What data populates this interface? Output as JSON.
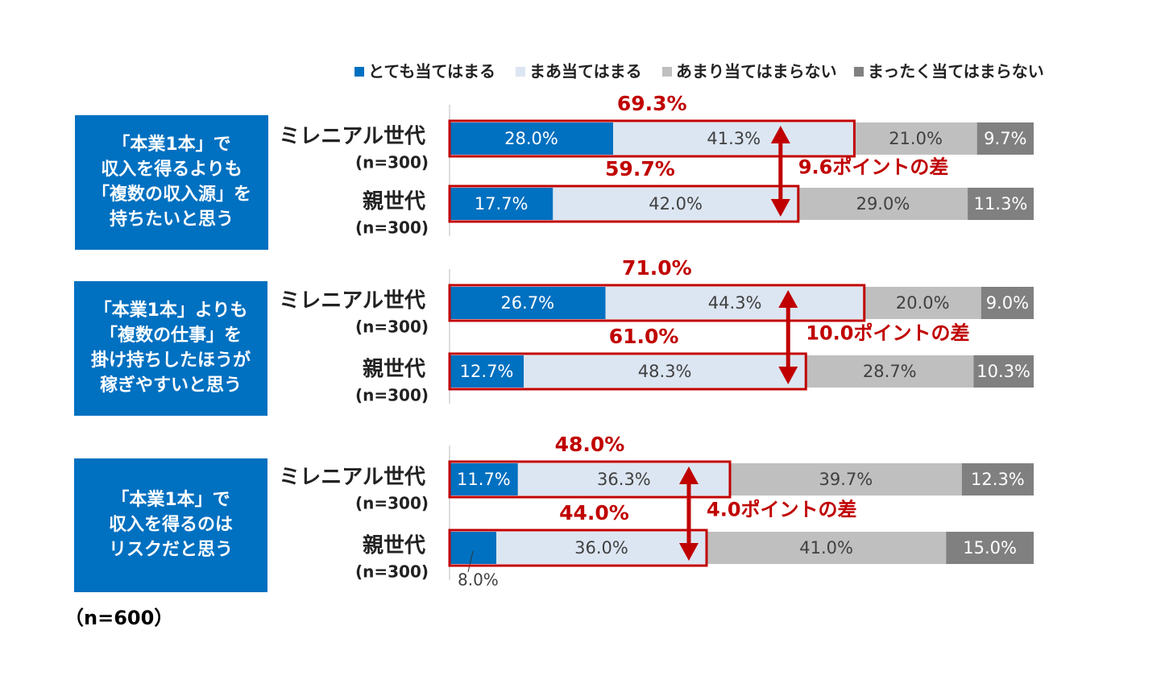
{
  "chart_data": {
    "type": "bar",
    "orientation": "horizontal",
    "stacked": true,
    "xlim": [
      0,
      100
    ],
    "legend": "top",
    "categories": [
      "ミレニアル世代",
      "親世代",
      "ミレニアル世代",
      "親世代",
      "ミレニアル世代",
      "親世代"
    ],
    "category_notes": [
      "(n=300)",
      "(n=300)",
      "(n=300)",
      "(n=300)",
      "(n=300)",
      "(n=300)"
    ],
    "series": [
      {
        "name": "とても当てはまる",
        "color": "#0070c0",
        "values": [
          28.0,
          17.7,
          26.7,
          12.7,
          11.7,
          8.0
        ],
        "value_labels": [
          "28.0%",
          "17.7%",
          "26.7%",
          "12.7%",
          "11.7%",
          "8.0%"
        ]
      },
      {
        "name": "まあ当てはまる",
        "color": "#dce6f2",
        "values": [
          41.3,
          42.0,
          44.3,
          48.3,
          36.3,
          36.0
        ],
        "value_labels": [
          "41.3%",
          "42.0%",
          "44.3%",
          "48.3%",
          "36.3%",
          "36.0%"
        ]
      },
      {
        "name": "あまり当てはまらない",
        "color": "#bfbfbf",
        "values": [
          21.0,
          29.0,
          20.0,
          28.7,
          39.7,
          41.0
        ],
        "value_labels": [
          "21.0%",
          "29.0%",
          "20.0%",
          "28.7%",
          "39.7%",
          "41.0%"
        ]
      },
      {
        "name": "まったく当てはまらない",
        "color": "#808080",
        "values": [
          9.7,
          11.3,
          9.0,
          10.3,
          12.3,
          15.0
        ],
        "value_labels": [
          "9.7%",
          "11.3%",
          "9.0%",
          "10.3%",
          "12.3%",
          "15.0%"
        ]
      }
    ],
    "groups": [
      {
        "label_lines": [
          "「本業1本」で",
          "収入を得るよりも",
          "「複数の収入源」を",
          "持ちたいと思う"
        ],
        "totals": [
          {
            "value": 69.3,
            "label": "69.3%"
          },
          {
            "value": 59.7,
            "label": "59.7%"
          }
        ],
        "difference": {
          "value": 9.6,
          "label": "9.6ポイントの差"
        }
      },
      {
        "label_lines": [
          "「本業1本」よりも",
          "「複数の仕事」を",
          "掛け持ちしたほうが",
          "稼ぎやすいと思う"
        ],
        "totals": [
          {
            "value": 71.0,
            "label": "71.0%"
          },
          {
            "value": 61.0,
            "label": "61.0%"
          }
        ],
        "difference": {
          "value": 10.0,
          "label": "10.0ポイントの差"
        }
      },
      {
        "label_lines": [
          "「本業1本」で",
          "収入を得るのは",
          "リスクだと思う"
        ],
        "totals": [
          {
            "value": 48.0,
            "label": "48.0%"
          },
          {
            "value": 44.0,
            "label": "44.0%"
          }
        ],
        "difference": {
          "value": 4.0,
          "label": "4.0ポイントの差"
        }
      }
    ],
    "highlight_color": "#c00000",
    "note": "（n=600）"
  }
}
